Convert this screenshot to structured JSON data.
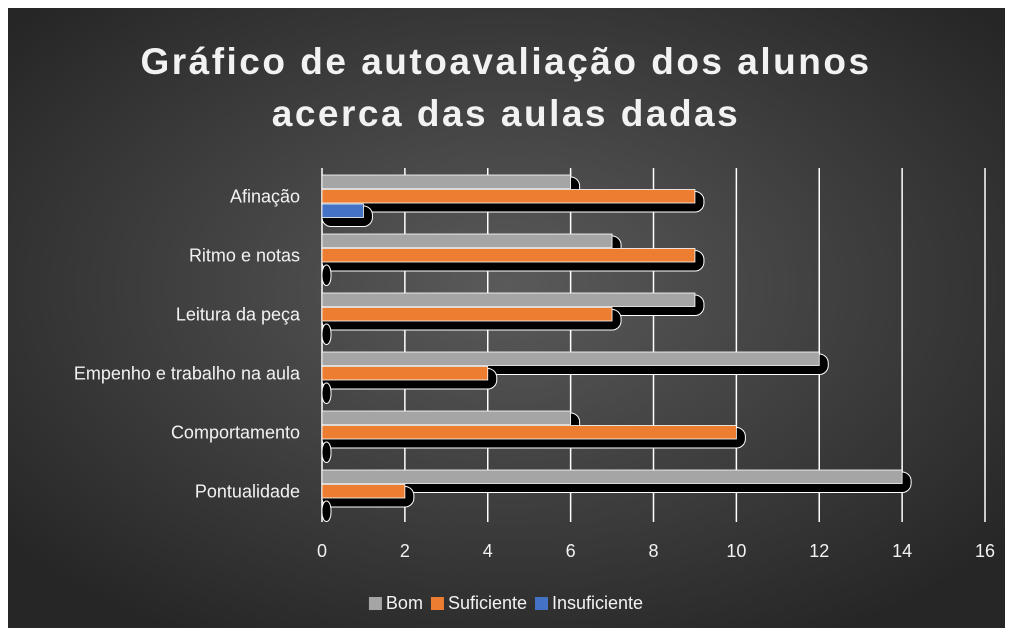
{
  "chart_data": {
    "type": "bar",
    "orientation": "horizontal",
    "title": "Gráfico de autoavaliação dos alunos acerca das aulas dadas",
    "categories": [
      "Afinação",
      "Ritmo e notas",
      "Leitura da peça",
      "Empenho e trabalho na aula",
      "Comportamento",
      "Pontualidade"
    ],
    "series": [
      {
        "name": "Bom",
        "color": "#a5a5a5",
        "values": [
          6,
          7,
          9,
          12,
          6,
          14
        ]
      },
      {
        "name": "Suficiente",
        "color": "#ed7d31",
        "values": [
          9,
          9,
          7,
          4,
          10,
          2
        ]
      },
      {
        "name": "Insuficiente",
        "color": "#4472c4",
        "values": [
          1,
          0,
          0,
          0,
          0,
          0
        ]
      }
    ],
    "xlim": [
      0,
      16
    ],
    "xticks": [
      0,
      2,
      4,
      6,
      8,
      10,
      12,
      14,
      16
    ],
    "grid": true,
    "legend": "bottom"
  }
}
